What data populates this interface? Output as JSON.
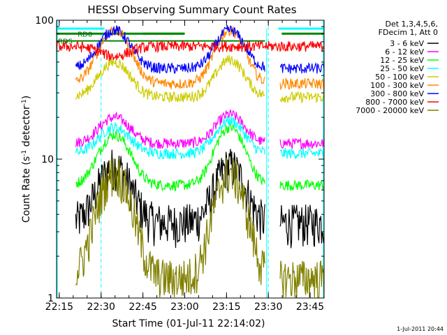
{
  "chart_data": {
    "type": "line",
    "title": "HESSI Observing Summary Count Rates",
    "xlabel": "Start Time (01-Jul-11 22:14:02)",
    "ylabel_main": "Count Rate (s",
    "ylabel_sup1": "-1",
    "ylabel_mid": " detector",
    "ylabel_sup2": "-1",
    "ylabel_end": ")",
    "y_scale": "log",
    "xlim": [
      22.2339,
      23.8333
    ],
    "ylim": [
      1,
      100
    ],
    "x_ticks": [
      {
        "t": 22.25,
        "label": "22:15"
      },
      {
        "t": 22.5,
        "label": "22:30"
      },
      {
        "t": 22.75,
        "label": "22:45"
      },
      {
        "t": 23.0,
        "label": "23:00"
      },
      {
        "t": 23.25,
        "label": "23:15"
      },
      {
        "t": 23.5,
        "label": "23:30"
      },
      {
        "t": 23.75,
        "label": "23:45"
      }
    ],
    "y_tick_labels": [
      {
        "v": 1,
        "label": "1"
      },
      {
        "v": 10,
        "label": "10"
      },
      {
        "v": 100,
        "label": "100"
      }
    ],
    "legend": {
      "header": [
        "Det 1,3,4,5,6,",
        "FDecim 1, Att 0"
      ],
      "entries": [
        {
          "label": "3 - 6 keV",
          "color": "#000000"
        },
        {
          "label": "6 - 12 keV",
          "color": "#ff00ff"
        },
        {
          "label": "12 - 25 keV",
          "color": "#00ff00"
        },
        {
          "label": "25 - 50 keV",
          "color": "#00ffff"
        },
        {
          "label": "50 - 100 keV",
          "color": "#cccc00"
        },
        {
          "label": "100 - 300 keV",
          "color": "#ff8800"
        },
        {
          "label": "300 - 800 keV",
          "color": "#0000ff"
        },
        {
          "label": "800 - 7000 keV",
          "color": "#ff0000"
        },
        {
          "label": "7000 - 20000 keV",
          "color": "#808000"
        }
      ]
    },
    "annotations": [
      {
        "text": "RD0",
        "color": "#006600"
      },
      {
        "text": "RDS",
        "color": "#006600"
      }
    ],
    "series": [
      {
        "name": "3 - 6 keV",
        "color": "#000000",
        "base": 3.5,
        "peak1": 9,
        "peak2": 9
      },
      {
        "name": "6 - 12 keV",
        "color": "#ff00ff",
        "base": 13,
        "peak1": 20,
        "peak2": 21
      },
      {
        "name": "12 - 25 keV",
        "color": "#00ff00",
        "base": 6.5,
        "peak1": 15,
        "peak2": 17
      },
      {
        "name": "25 - 50 keV",
        "color": "#00ffff",
        "base": 11,
        "peak1": 17,
        "peak2": 19
      },
      {
        "name": "50 - 100 keV",
        "color": "#cccc00",
        "base": 28,
        "peak1": 50,
        "peak2": 52
      },
      {
        "name": "100 - 300 keV",
        "color": "#ff8800",
        "base": 35,
        "peak1": 85,
        "peak2": 85
      },
      {
        "name": "300 - 800 keV",
        "color": "#0000ff",
        "base": 45,
        "peak1": 85,
        "peak2": 85
      },
      {
        "name": "800 - 7000 keV",
        "color": "#ff0000",
        "base": 65,
        "peak1": 55,
        "peak2": 65
      },
      {
        "name": "7000 - 20000 keV",
        "color": "#808000",
        "base": 1.4,
        "peak1": 8,
        "peak2": 8
      }
    ],
    "reference_lines": {
      "saa_top_color": "#00ffff",
      "flag_color": "#008800",
      "dashed_times": [
        22.5,
        23.5
      ]
    },
    "stamp": "1-Jul-2011 20:44"
  }
}
